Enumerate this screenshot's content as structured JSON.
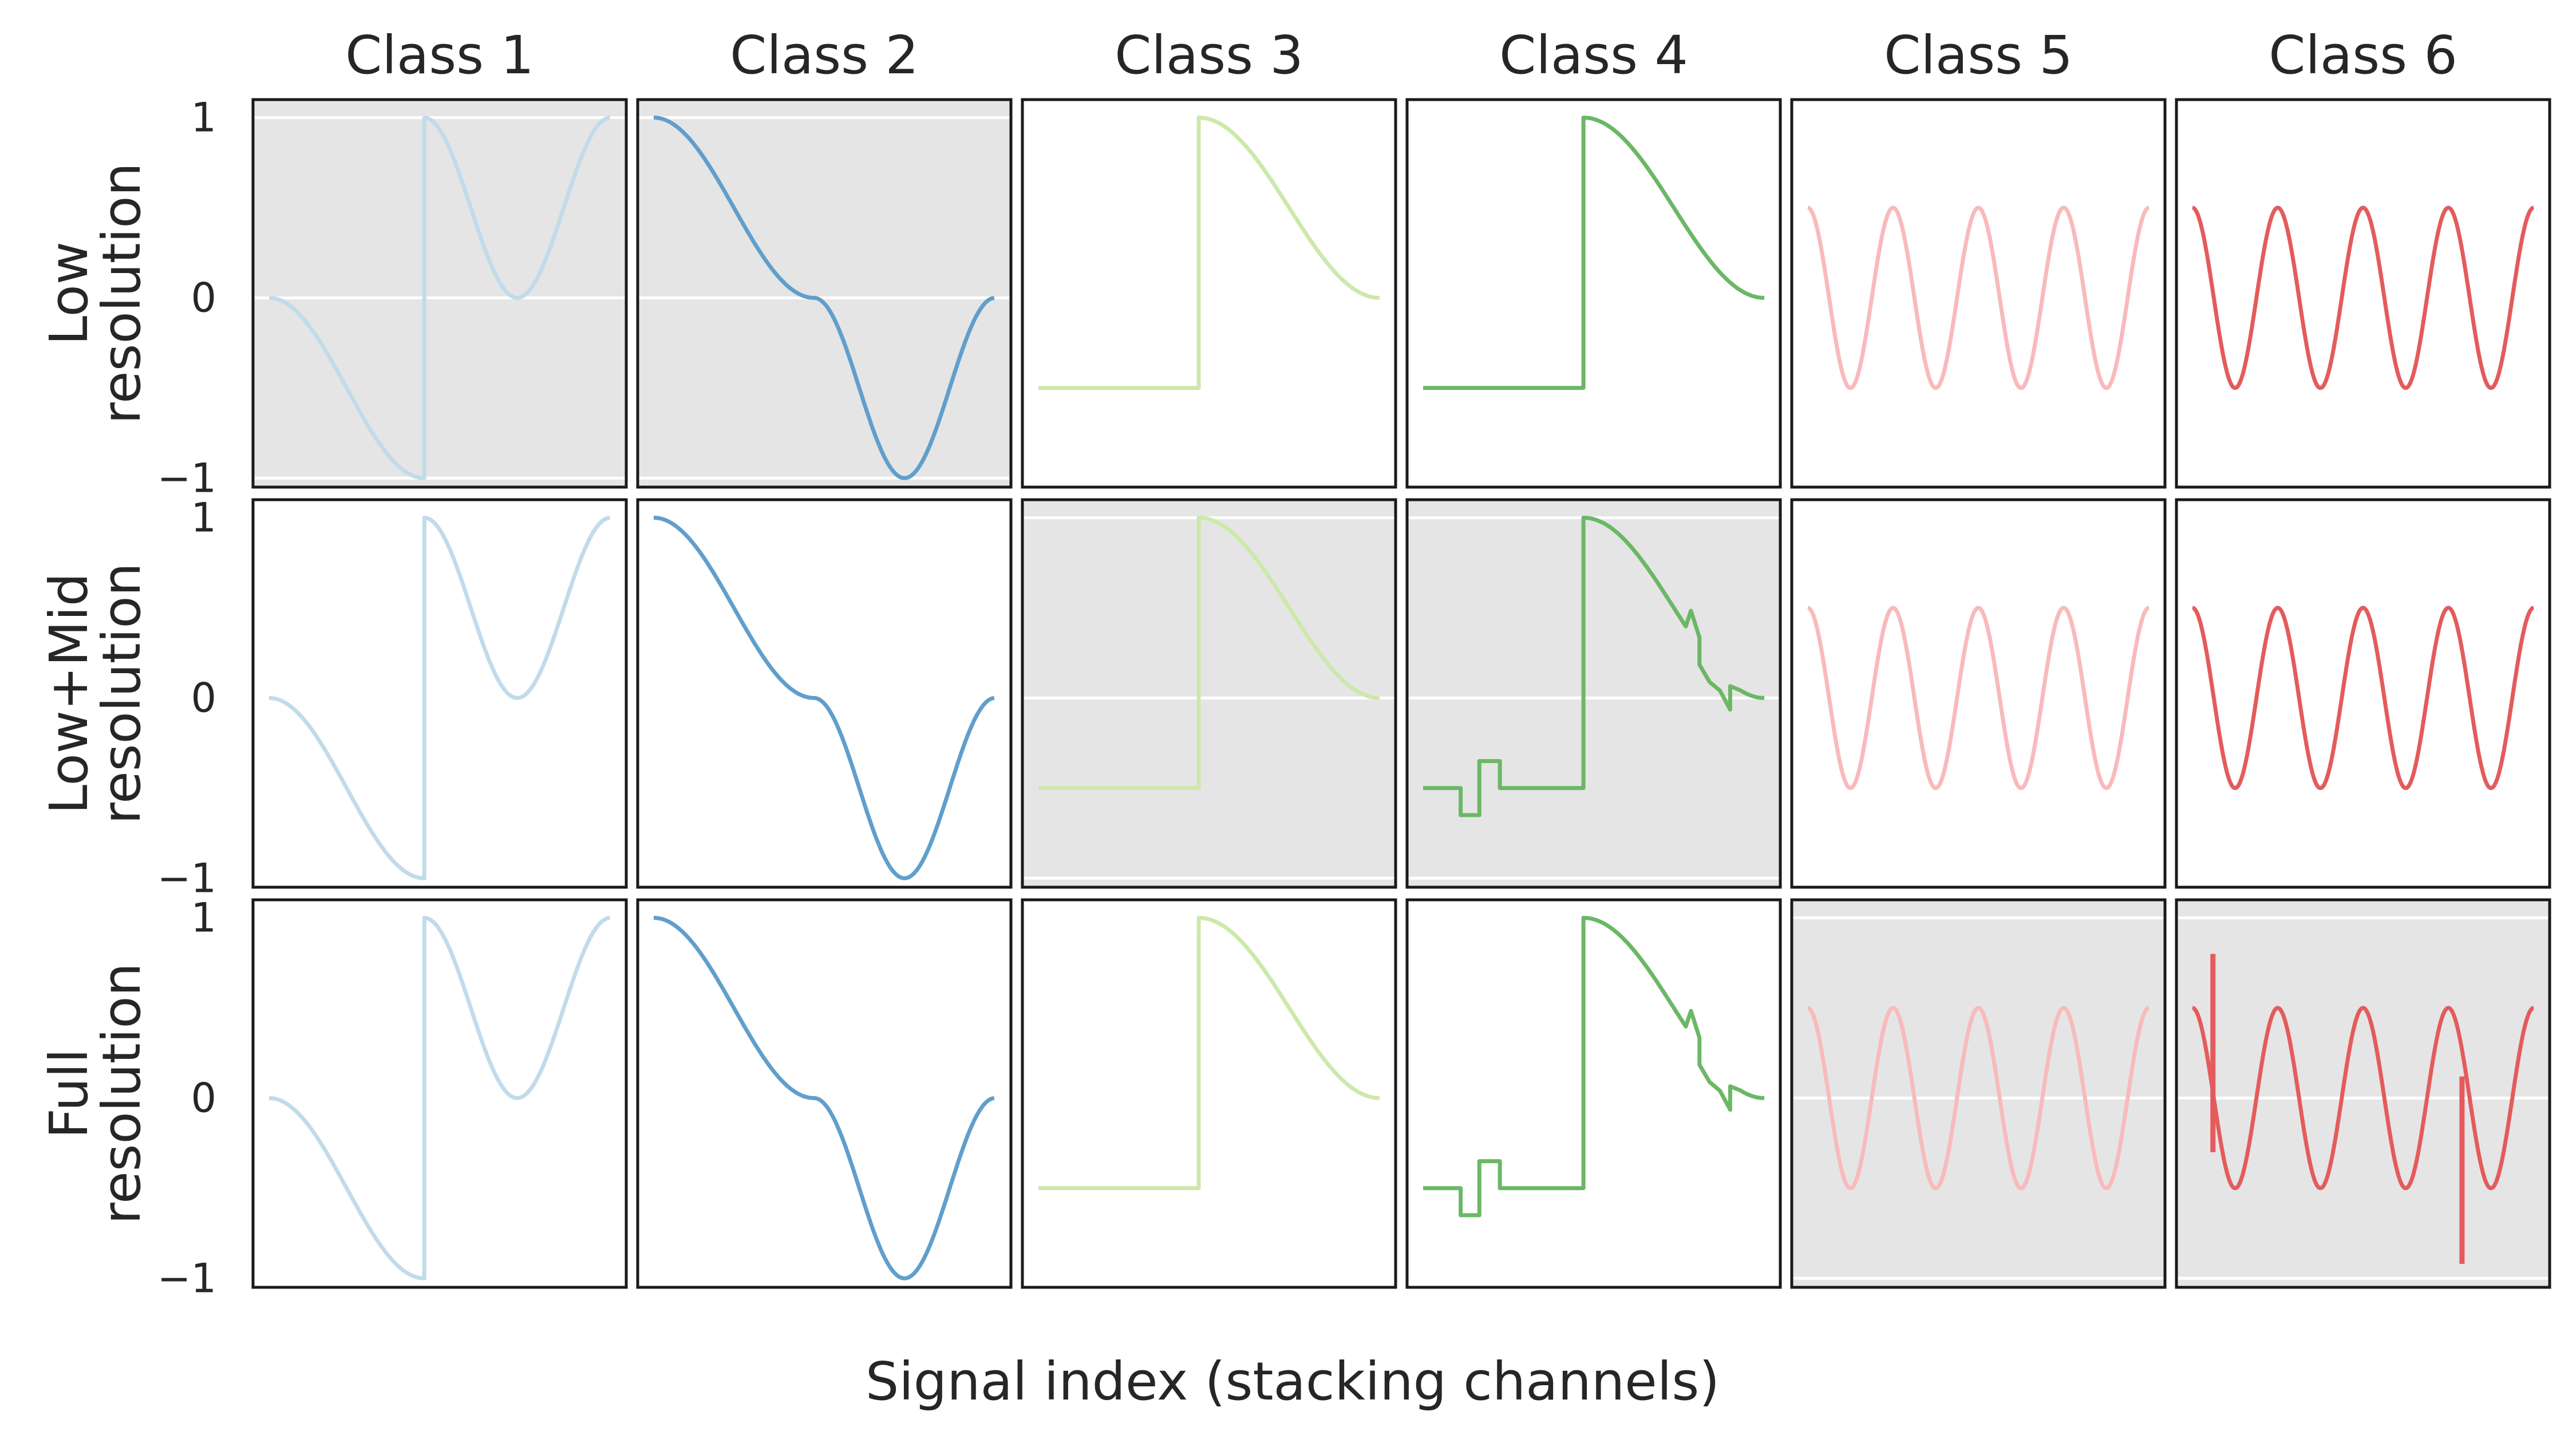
{
  "chart_data": {
    "type": "line",
    "xlabel": "Signal index (stacking channels)",
    "columns": [
      "Class 1",
      "Class 2",
      "Class 3",
      "Class 4",
      "Class 5",
      "Class 6"
    ],
    "rows": [
      "Low\nresolution",
      "Low+Mid\nresolution",
      "Full\nresolution"
    ],
    "ylim": [
      -1.05,
      1.1
    ],
    "xlim": [
      0,
      1
    ],
    "yticks": [
      {
        "value": 1,
        "label": "1"
      },
      {
        "value": 0,
        "label": "0"
      },
      {
        "value": -1,
        "label": "−1"
      }
    ],
    "grid": "horizontal, highlighted panels only",
    "highlighted_panels": [
      {
        "row": 0,
        "col": 0
      },
      {
        "row": 0,
        "col": 1
      },
      {
        "row": 1,
        "col": 2
      },
      {
        "row": 1,
        "col": 3
      },
      {
        "row": 2,
        "col": 4
      },
      {
        "row": 2,
        "col": 5
      }
    ],
    "colors": {
      "class1": "#c1dbea",
      "class2": "#609fcb",
      "class3": "#cde8ab",
      "class4": "#6bb766",
      "class5": "#f8babb",
      "class6": "#e45b5c",
      "highlight_bg": "#e5e5e5",
      "grid": "#ffffff",
      "border": "#1a1a1a"
    },
    "series": [
      {
        "class": 1,
        "shape": "negative cosine-bump from 0 to -1 over x 0-0.45, jump to +1, dip to 0 near x 0.7, back to 1"
      },
      {
        "class": 2,
        "shape": "smooth descent from 1 to 0 near x 0.47, then dip to -1 near x 0.72, return to 0"
      },
      {
        "class": 3,
        "shape": "flat -0.5 until x 0.47, step to 1, smooth decay to 0"
      },
      {
        "class": 4,
        "shape": "flat -0.5 until x 0.47, step to 1, smooth decay to 0; finer resolutions add small steps and bumps"
      },
      {
        "class": 5,
        "shape": "sinusoid between 0.5 and -0.5 with a phase reset near x 0.5"
      },
      {
        "class": 6,
        "shape": "sinusoid between 0.5 and -0.5 with a phase reset near x 0.5; full resolution adds spikes"
      }
    ]
  }
}
